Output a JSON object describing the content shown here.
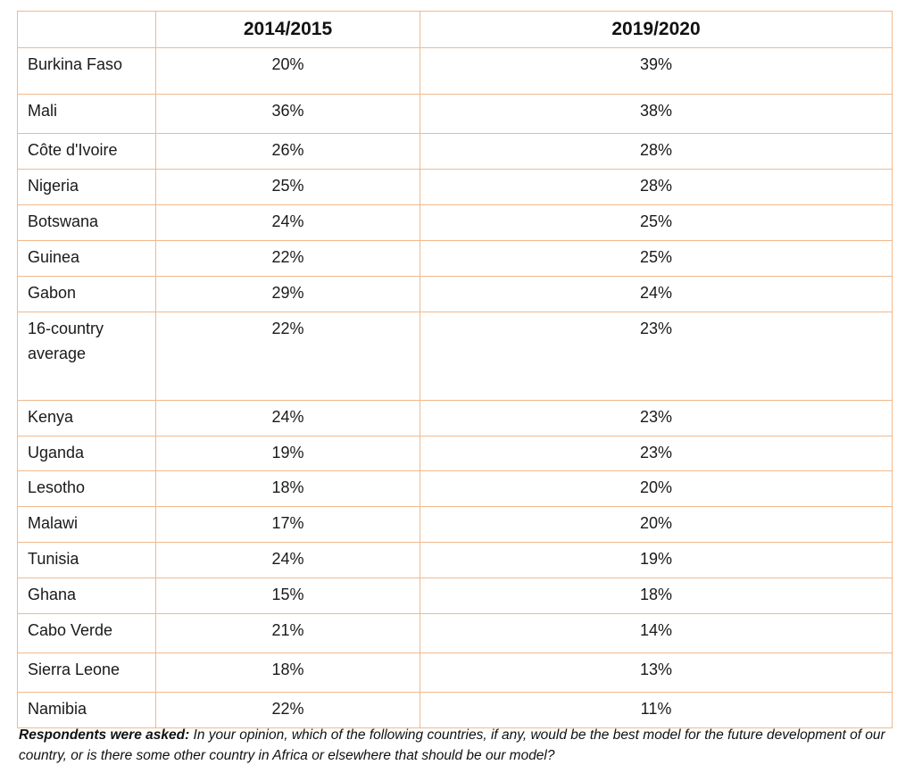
{
  "chart_data": {
    "type": "table",
    "columns": [
      "",
      "2014/2015",
      "2019/2020"
    ],
    "rows": [
      {
        "country": "Burkina Faso",
        "v2014_2015": "20%",
        "v2019_2020": "39%"
      },
      {
        "country": "Mali",
        "v2014_2015": "36%",
        "v2019_2020": "38%"
      },
      {
        "country": "Côte d'Ivoire",
        "v2014_2015": "26%",
        "v2019_2020": "28%"
      },
      {
        "country": "Nigeria",
        "v2014_2015": "25%",
        "v2019_2020": "28%"
      },
      {
        "country": "Botswana",
        "v2014_2015": "24%",
        "v2019_2020": "25%"
      },
      {
        "country": "Guinea",
        "v2014_2015": "22%",
        "v2019_2020": "25%"
      },
      {
        "country": "Gabon",
        "v2014_2015": "29%",
        "v2019_2020": "24%"
      },
      {
        "country": "16-country average",
        "v2014_2015": "22%",
        "v2019_2020": "23%"
      },
      {
        "country": "Kenya",
        "v2014_2015": "24%",
        "v2019_2020": "23%"
      },
      {
        "country": "Uganda",
        "v2014_2015": "19%",
        "v2019_2020": "23%"
      },
      {
        "country": "Lesotho",
        "v2014_2015": "18%",
        "v2019_2020": "20%"
      },
      {
        "country": "Malawi",
        "v2014_2015": "17%",
        "v2019_2020": "20%"
      },
      {
        "country": "Tunisia",
        "v2014_2015": "24%",
        "v2019_2020": "19%"
      },
      {
        "country": "Ghana",
        "v2014_2015": "15%",
        "v2019_2020": "18%"
      },
      {
        "country": "Cabo Verde",
        "v2014_2015": "21%",
        "v2019_2020": "14%"
      },
      {
        "country": "Sierra Leone",
        "v2014_2015": "18%",
        "v2019_2020": "13%"
      },
      {
        "country": "Namibia",
        "v2014_2015": "22%",
        "v2019_2020": "11%"
      }
    ],
    "border_color": "#f0b98e"
  },
  "footnote": {
    "label": "Respondents were asked:",
    "text": " In your opinion, which of the following countries, if any, would be the best model for the future development of our country, or is there some other country in Africa or elsewhere that should be our model?"
  }
}
